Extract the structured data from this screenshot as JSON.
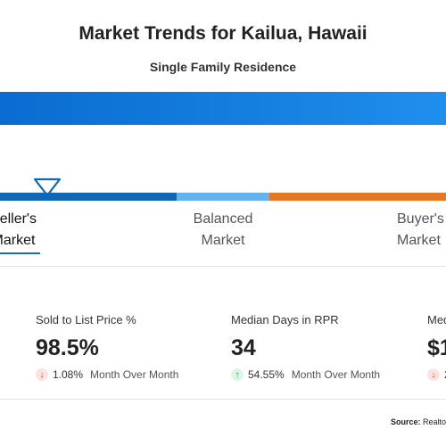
{
  "header": {
    "title": "Market Trends for Kailua, Hawaii",
    "subtitle": "Single Family Residence"
  },
  "market_scale": {
    "seller": {
      "line1": "Seller's",
      "line2": "Market"
    },
    "balanced": {
      "line1": "Balanced",
      "line2": "Market"
    },
    "buyer": {
      "line1": "Buyer's",
      "line2": "Market"
    },
    "colors": {
      "seller": "#0f67b8",
      "balanced": "#62b3ee",
      "buyer": "#e57824"
    },
    "indicator_icon": "triangle-down-icon",
    "selected": "seller"
  },
  "stats": [
    {
      "label": "Sold to List Price %",
      "value": "98.5%",
      "direction": "down",
      "arrow": "↓",
      "change": "1.08%",
      "period": "Month Over Month"
    },
    {
      "label": "Median Days in RPR",
      "value": "34",
      "direction": "up",
      "arrow": "↑",
      "change": "54.55%",
      "period": "Month Over Month"
    },
    {
      "label": "Med",
      "value": "$1",
      "direction": "down",
      "arrow": "↓",
      "change": "2",
      "period": ""
    }
  ],
  "footer": {
    "source_label": "Source:",
    "source_text": "Realto"
  }
}
